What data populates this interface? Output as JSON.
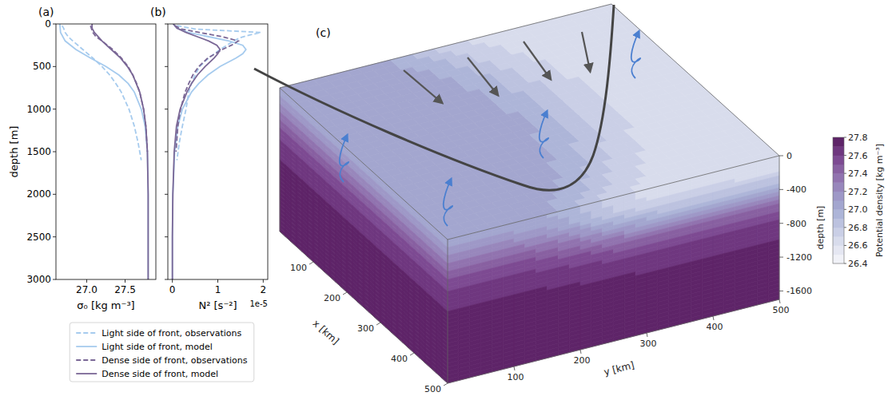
{
  "chart_data": [
    {
      "type": "line",
      "title": "(a)",
      "xlabel": "σ₀ [kg m⁻³]",
      "ylabel": "depth [m]",
      "xlim": [
        26.6,
        27.9
      ],
      "xticks": [
        {
          "value": 27,
          "label": "27.0"
        },
        27.5
      ],
      "ylim": [
        3000,
        0
      ],
      "yticks": [
        0,
        500,
        1000,
        1500,
        2000,
        2500,
        3000
      ],
      "legend": "below",
      "series": [
        {
          "name": "Light side of front, observations",
          "color": "#a6cbee",
          "line_style": "dashed",
          "depth": [
            20,
            50,
            100,
            150,
            200,
            300,
            400,
            500,
            600,
            700,
            800,
            900,
            1000,
            1200,
            1400,
            1600
          ],
          "values": [
            26.68,
            26.7,
            26.72,
            26.76,
            26.82,
            26.95,
            27.08,
            27.2,
            27.3,
            27.38,
            27.45,
            27.5,
            27.55,
            27.62,
            27.67,
            27.71
          ]
        },
        {
          "name": "Light side of front, model",
          "color": "#a6cbee",
          "line_style": "solid",
          "depth": [
            0,
            100,
            200,
            300,
            400,
            500,
            600,
            700,
            800,
            1000,
            1200,
            1500,
            2000,
            2500,
            3000
          ],
          "values": [
            26.65,
            26.66,
            26.72,
            26.86,
            27.05,
            27.25,
            27.42,
            27.54,
            27.62,
            27.71,
            27.76,
            27.79,
            27.8,
            27.8,
            27.8
          ]
        },
        {
          "name": "Dense side of front, observations",
          "color": "#7a6796",
          "line_style": "dashed",
          "depth": [
            20,
            50,
            100,
            150,
            200,
            300,
            400,
            500,
            600,
            700,
            800,
            1000,
            1200,
            1500
          ],
          "values": [
            27.05,
            27.06,
            27.08,
            27.12,
            27.2,
            27.34,
            27.45,
            27.54,
            27.6,
            27.65,
            27.69,
            27.74,
            27.77,
            27.79
          ]
        },
        {
          "name": "Dense side of front, model",
          "color": "#7a6796",
          "line_style": "solid",
          "depth": [
            0,
            50,
            100,
            200,
            300,
            400,
            500,
            600,
            800,
            1000,
            1200,
            1500,
            2000,
            2500,
            3000
          ],
          "values": [
            27.07,
            27.07,
            27.1,
            27.2,
            27.32,
            27.44,
            27.53,
            27.6,
            27.69,
            27.74,
            27.77,
            27.79,
            27.8,
            27.8,
            27.8
          ]
        }
      ]
    },
    {
      "type": "line",
      "title": "(b)",
      "xlabel": "N² [s⁻²]",
      "annotations": [
        "1e-5"
      ],
      "xlim": [
        -0.1,
        2.1
      ],
      "xticks": [
        0,
        1,
        2
      ],
      "ylim": [
        3000,
        0
      ],
      "yticks": [
        0,
        500,
        1000,
        1500,
        2000,
        2500,
        3000
      ],
      "tick_labels": "x",
      "series": [
        {
          "color": "#a6cbee",
          "line_style": "dashed",
          "depth": [
            20,
            60,
            100,
            130,
            160,
            200,
            250,
            300,
            400,
            500,
            600,
            700,
            800,
            1000,
            1200,
            1400,
            1600
          ],
          "values": [
            0.1,
            0.5,
            1.95,
            1.7,
            1.5,
            1.35,
            1.2,
            1.05,
            0.8,
            0.6,
            0.5,
            0.42,
            0.36,
            0.3,
            0.22,
            0.15,
            0.1
          ]
        },
        {
          "color": "#a6cbee",
          "line_style": "solid",
          "depth": [
            0,
            50,
            100,
            150,
            200,
            250,
            300,
            350,
            400,
            500,
            600,
            700,
            800,
            1000,
            1200,
            1500,
            2000,
            2500,
            3000
          ],
          "values": [
            0.02,
            0.1,
            0.35,
            0.8,
            1.25,
            1.55,
            1.62,
            1.55,
            1.4,
            1.05,
            0.78,
            0.58,
            0.42,
            0.22,
            0.12,
            0.05,
            0.01,
            0,
            0
          ]
        },
        {
          "color": "#7a6796",
          "line_style": "dashed",
          "depth": [
            20,
            60,
            100,
            150,
            200,
            250,
            300,
            400,
            500,
            600,
            700,
            800,
            1000,
            1200,
            1500
          ],
          "values": [
            0.05,
            0.2,
            0.6,
            1.1,
            1.45,
            1.3,
            1.1,
            0.78,
            0.58,
            0.45,
            0.36,
            0.28,
            0.18,
            0.12,
            0.08
          ]
        },
        {
          "color": "#7a6796",
          "line_style": "solid",
          "depth": [
            0,
            50,
            100,
            150,
            200,
            250,
            300,
            350,
            400,
            500,
            600,
            700,
            800,
            1000,
            1200,
            1500,
            2000,
            2500,
            3000
          ],
          "values": [
            0.02,
            0.1,
            0.3,
            0.55,
            0.8,
            0.98,
            1.05,
            1.0,
            0.92,
            0.72,
            0.55,
            0.42,
            0.32,
            0.17,
            0.09,
            0.04,
            0.01,
            0,
            0
          ]
        }
      ]
    },
    {
      "type": "box3d",
      "title": "(c)",
      "xlabel": "x [km]",
      "ylabel": "y [km]",
      "zlabel": "depth [m]",
      "xlim": [
        0,
        500
      ],
      "xticks": [
        100,
        200,
        300,
        400,
        500
      ],
      "ylim": [
        0,
        500
      ],
      "yticks": [
        100,
        200,
        300,
        400,
        500
      ],
      "zlim": [
        -1700,
        0
      ],
      "zticks": [
        0,
        -400,
        -800,
        -1200,
        -1600
      ],
      "colorbar": {
        "label": "Potential density [kg m⁻³]",
        "range": [
          26.4,
          27.8
        ],
        "ticks": [
          26.4,
          26.6,
          26.8,
          {
            "value": 27,
            "label": "27.0"
          },
          27.2,
          27.4,
          27.6,
          27.8
        ],
        "levels": [
          26.4,
          26.5,
          26.6,
          26.7,
          26.8,
          26.9,
          27.0,
          27.1,
          27.2,
          27.3,
          27.4,
          27.5,
          27.6,
          27.7,
          27.8
        ]
      }
    }
  ]
}
